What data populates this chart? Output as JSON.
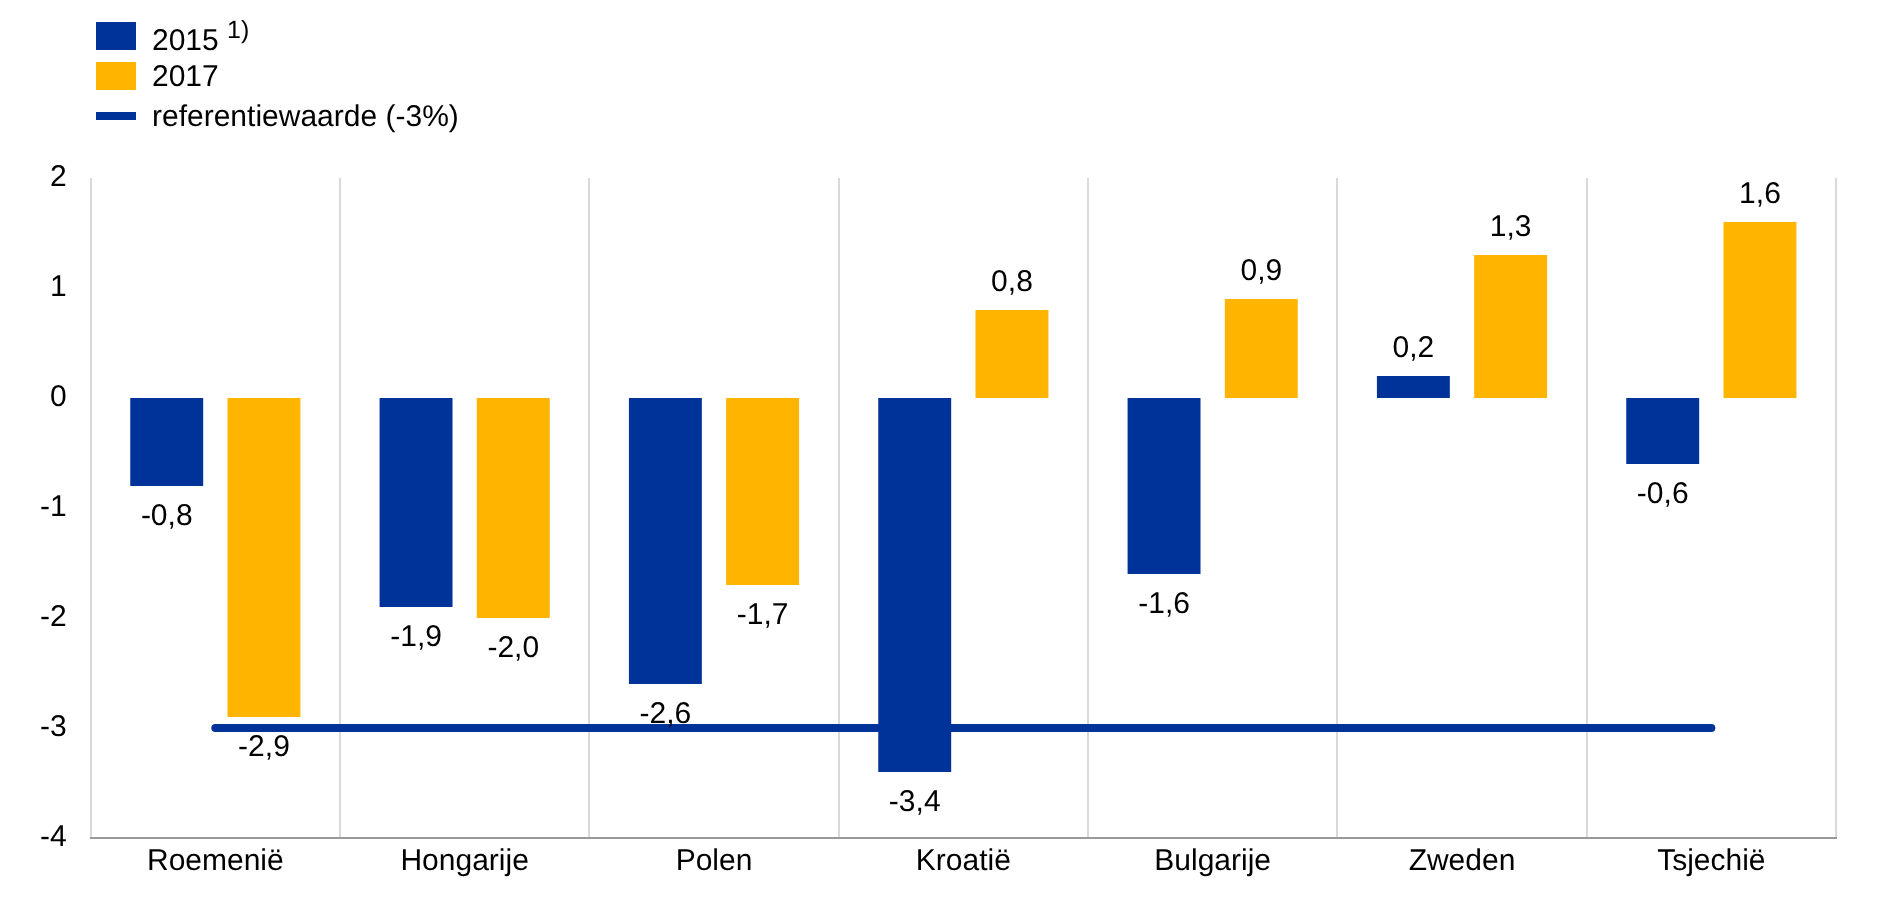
{
  "chart_data": {
    "type": "bar",
    "categories": [
      "Roemenië",
      "Hongarije",
      "Polen",
      "Kroatië",
      "Bulgarije",
      "Zweden",
      "Tsjechië"
    ],
    "series": [
      {
        "name": "2015 $^{1)}$",
        "color": "#003399",
        "values": [
          -0.8,
          -1.9,
          -2.6,
          -3.4,
          -1.6,
          0.2,
          -0.6
        ],
        "value_labels": [
          "-0,8",
          "-1,9",
          "-2,6",
          "-3,4",
          "-1,6",
          "0,2",
          "-0,6"
        ]
      },
      {
        "name": "2017",
        "color": "#ffb400",
        "values": [
          -2.9,
          -2.0,
          -1.7,
          0.8,
          0.9,
          1.3,
          1.6
        ],
        "value_labels": [
          "-2,9",
          "-2,0",
          "-1,7",
          "0,8",
          "0,9",
          "1,3",
          "1,6"
        ]
      }
    ],
    "ylim": [
      -4,
      2
    ],
    "yticks": [
      -4,
      -3,
      -2,
      -1,
      0,
      1,
      2
    ],
    "grid": "x",
    "legend": "top left",
    "ref_lines": [
      {
        "axis": "y",
        "value": -3,
        "label": "referentiewaarde (-3%)",
        "color": "#003399"
      }
    ]
  }
}
